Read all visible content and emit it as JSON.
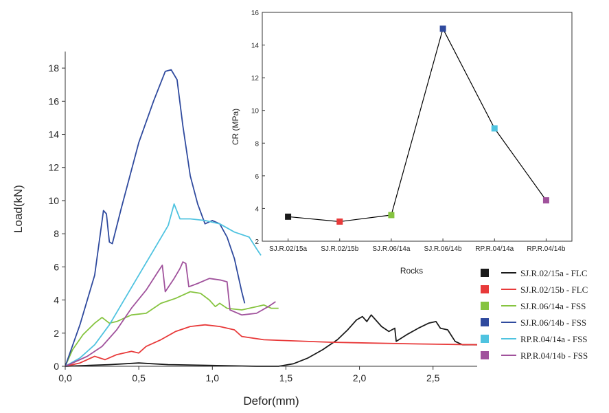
{
  "chart_data": [
    {
      "type": "line",
      "xlabel": "Defor(mm)",
      "ylabel": "Load(kN)",
      "xlim": [
        0,
        2.8
      ],
      "ylim": [
        0,
        19
      ],
      "x_ticks": [
        0,
        0.5,
        1.0,
        1.5,
        2.0,
        2.5
      ],
      "x_tick_labels": [
        "0,0",
        "0,5",
        "1,0",
        "1,5",
        "2,0",
        "2,5"
      ],
      "y_ticks": [
        0,
        2,
        4,
        6,
        8,
        10,
        12,
        14,
        16,
        18
      ],
      "y_tick_labels": [
        "0",
        "2",
        "4",
        "6",
        "8",
        "10",
        "12",
        "14",
        "16",
        "18"
      ],
      "grid": false,
      "legend_position": "bottom-right",
      "series": [
        {
          "name": "SJ.R.02/15a - FLC",
          "color": "#1a1a1a",
          "points": [
            [
              0,
              0
            ],
            [
              0.3,
              0.1
            ],
            [
              0.5,
              0.2
            ],
            [
              0.7,
              0.1
            ],
            [
              1.0,
              0.05
            ],
            [
              1.3,
              0
            ],
            [
              1.45,
              0
            ],
            [
              1.55,
              0.15
            ],
            [
              1.65,
              0.5
            ],
            [
              1.75,
              1.0
            ],
            [
              1.85,
              1.6
            ],
            [
              1.92,
              2.2
            ],
            [
              1.98,
              2.8
            ],
            [
              2.02,
              3.0
            ],
            [
              2.05,
              2.7
            ],
            [
              2.08,
              3.1
            ],
            [
              2.1,
              2.9
            ],
            [
              2.15,
              2.4
            ],
            [
              2.2,
              2.1
            ],
            [
              2.24,
              2.3
            ],
            [
              2.25,
              1.5
            ],
            [
              2.32,
              1.9
            ],
            [
              2.4,
              2.3
            ],
            [
              2.47,
              2.6
            ],
            [
              2.52,
              2.7
            ],
            [
              2.55,
              2.3
            ],
            [
              2.6,
              2.2
            ],
            [
              2.65,
              1.5
            ],
            [
              2.7,
              1.3
            ],
            [
              2.8,
              1.3
            ]
          ]
        },
        {
          "name": "SJ.R.02/15b - FLC",
          "color": "#e83a3a",
          "points": [
            [
              0,
              0
            ],
            [
              0.1,
              0.2
            ],
            [
              0.2,
              0.6
            ],
            [
              0.27,
              0.4
            ],
            [
              0.35,
              0.7
            ],
            [
              0.45,
              0.9
            ],
            [
              0.5,
              0.8
            ],
            [
              0.55,
              1.2
            ],
            [
              0.65,
              1.6
            ],
            [
              0.75,
              2.1
            ],
            [
              0.85,
              2.4
            ],
            [
              0.95,
              2.5
            ],
            [
              1.05,
              2.4
            ],
            [
              1.15,
              2.2
            ],
            [
              1.2,
              1.8
            ],
            [
              1.35,
              1.6
            ],
            [
              1.5,
              1.55
            ],
            [
              1.8,
              1.45
            ],
            [
              2.1,
              1.4
            ],
            [
              2.4,
              1.35
            ],
            [
              2.8,
              1.3
            ]
          ]
        },
        {
          "name": "SJ.R.06/14a - FSS",
          "color": "#86c440",
          "points": [
            [
              0,
              0
            ],
            [
              0.05,
              1.0
            ],
            [
              0.12,
              1.9
            ],
            [
              0.2,
              2.6
            ],
            [
              0.25,
              2.95
            ],
            [
              0.3,
              2.6
            ],
            [
              0.35,
              2.7
            ],
            [
              0.45,
              3.1
            ],
            [
              0.55,
              3.2
            ],
            [
              0.65,
              3.8
            ],
            [
              0.75,
              4.1
            ],
            [
              0.85,
              4.5
            ],
            [
              0.92,
              4.4
            ],
            [
              0.98,
              4.0
            ],
            [
              1.02,
              3.6
            ],
            [
              1.05,
              3.8
            ],
            [
              1.1,
              3.5
            ],
            [
              1.2,
              3.4
            ],
            [
              1.3,
              3.6
            ],
            [
              1.35,
              3.7
            ],
            [
              1.4,
              3.5
            ],
            [
              1.45,
              3.5
            ]
          ]
        },
        {
          "name": "SJ.R.06/14b - FSS",
          "color": "#2f4a9e",
          "points": [
            [
              0,
              0
            ],
            [
              0.1,
              2.5
            ],
            [
              0.2,
              5.5
            ],
            [
              0.26,
              9.4
            ],
            [
              0.28,
              9.2
            ],
            [
              0.3,
              7.5
            ],
            [
              0.32,
              7.4
            ],
            [
              0.38,
              9.5
            ],
            [
              0.5,
              13.5
            ],
            [
              0.6,
              16.0
            ],
            [
              0.68,
              17.8
            ],
            [
              0.72,
              17.9
            ],
            [
              0.76,
              17.3
            ],
            [
              0.8,
              14.5
            ],
            [
              0.85,
              11.5
            ],
            [
              0.9,
              9.8
            ],
            [
              0.95,
              8.6
            ],
            [
              1.0,
              8.8
            ],
            [
              1.05,
              8.6
            ],
            [
              1.1,
              7.8
            ],
            [
              1.15,
              6.5
            ],
            [
              1.2,
              4.5
            ],
            [
              1.22,
              3.8
            ]
          ]
        },
        {
          "name": "RP.R.04/14a - FSS",
          "color": "#4fc3e0",
          "points": [
            [
              0,
              0
            ],
            [
              0.1,
              0.5
            ],
            [
              0.2,
              1.3
            ],
            [
              0.3,
              2.5
            ],
            [
              0.4,
              4.0
            ],
            [
              0.5,
              5.5
            ],
            [
              0.6,
              7.0
            ],
            [
              0.7,
              8.5
            ],
            [
              0.74,
              9.8
            ],
            [
              0.78,
              8.9
            ],
            [
              0.85,
              8.9
            ],
            [
              0.95,
              8.8
            ],
            [
              1.05,
              8.6
            ],
            [
              1.15,
              8.1
            ],
            [
              1.25,
              7.8
            ],
            [
              1.3,
              7.1
            ],
            [
              1.33,
              6.7
            ]
          ]
        },
        {
          "name": "RP.R.04/14b - FSS",
          "color": "#a0529c",
          "points": [
            [
              0,
              0
            ],
            [
              0.15,
              0.6
            ],
            [
              0.25,
              1.2
            ],
            [
              0.35,
              2.2
            ],
            [
              0.45,
              3.5
            ],
            [
              0.55,
              4.6
            ],
            [
              0.63,
              5.7
            ],
            [
              0.66,
              6.1
            ],
            [
              0.68,
              4.5
            ],
            [
              0.74,
              5.3
            ],
            [
              0.78,
              5.9
            ],
            [
              0.8,
              6.3
            ],
            [
              0.82,
              6.2
            ],
            [
              0.84,
              4.8
            ],
            [
              0.9,
              5.0
            ],
            [
              0.98,
              5.3
            ],
            [
              1.06,
              5.2
            ],
            [
              1.1,
              5.1
            ],
            [
              1.12,
              3.4
            ],
            [
              1.2,
              3.1
            ],
            [
              1.3,
              3.2
            ],
            [
              1.38,
              3.6
            ],
            [
              1.43,
              3.9
            ]
          ]
        }
      ]
    },
    {
      "type": "line",
      "xlabel": "Rocks",
      "ylabel": "CR (MPa)",
      "ylim": [
        2,
        16
      ],
      "y_ticks": [
        2,
        4,
        6,
        8,
        10,
        12,
        14,
        16
      ],
      "y_tick_labels": [
        "2",
        "4",
        "6",
        "8",
        "10",
        "12",
        "14",
        "16"
      ],
      "categories": [
        "SJ.R.02/15a",
        "SJ.R.02/15b",
        "SJ.R.06/14a",
        "SJ.R.06/14b",
        "RP.R.04/14a",
        "RP.R.04/14b"
      ],
      "values": [
        3.5,
        3.2,
        3.6,
        15.0,
        8.9,
        4.5
      ],
      "marker_colors": [
        "#1a1a1a",
        "#e83a3a",
        "#86c440",
        "#2f4a9e",
        "#4fc3e0",
        "#a0529c"
      ],
      "line_color": "#000000",
      "grid": false
    }
  ]
}
